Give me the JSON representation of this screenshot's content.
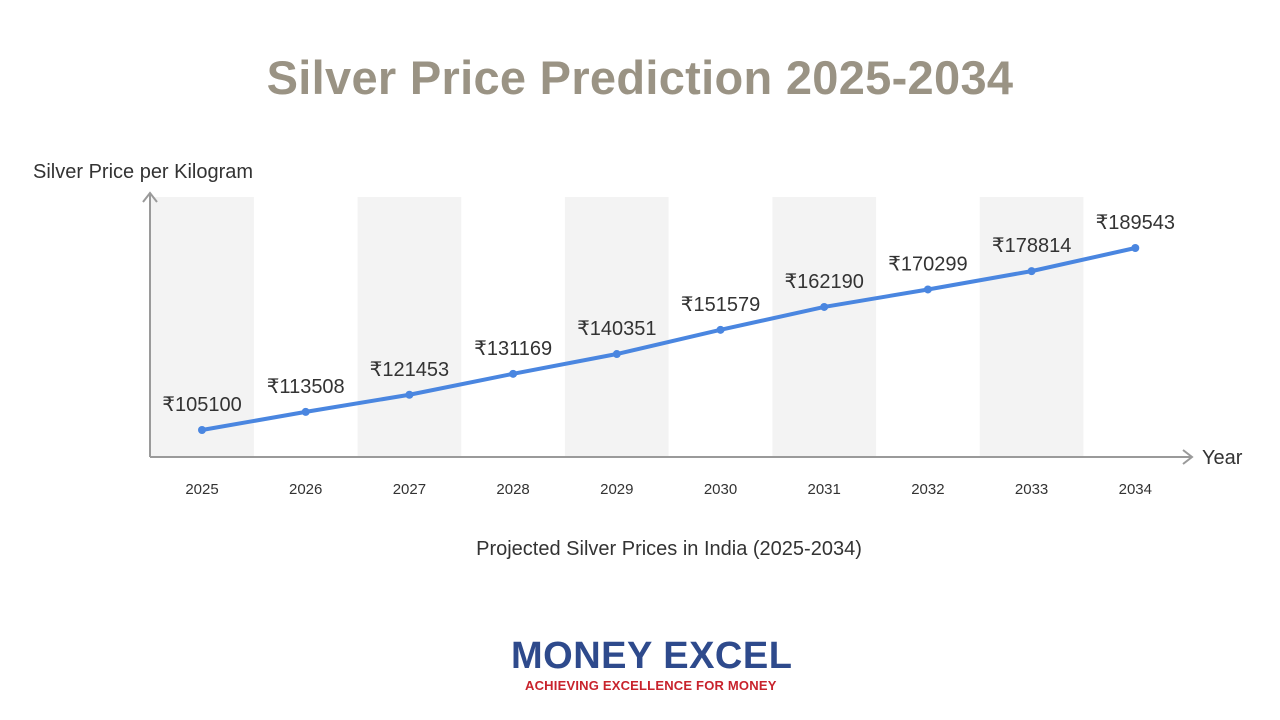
{
  "title": "Silver Price Prediction 2025-2034",
  "chart_data": {
    "type": "line",
    "title": "Silver Price Prediction 2025-2034",
    "subtitle": "Projected Silver Prices in India (2025-2034)",
    "ylabel": "Silver Price per Kilogram",
    "xlabel": "Year",
    "categories": [
      "2025",
      "2026",
      "2027",
      "2028",
      "2029",
      "2030",
      "2031",
      "2032",
      "2033",
      "2034"
    ],
    "values": [
      105100,
      113508,
      121453,
      131169,
      140351,
      151579,
      162190,
      170299,
      178814,
      189543
    ],
    "value_labels": [
      "₹105100",
      "₹113508",
      "₹121453",
      "₹131169",
      "₹140351",
      "₹151579",
      "₹162190",
      "₹170299",
      "₹178814",
      "₹189543"
    ],
    "grid": false,
    "alternating_bands": true,
    "line_color": "#4a86e0",
    "band_color": "#f3f3f3"
  },
  "logo": {
    "text": "MONEY EXCEL",
    "tagline": "ACHIEVING EXCELLENCE FOR MONEY",
    "primary_color": "#2e4a8c",
    "tagline_color": "#c8232c"
  }
}
